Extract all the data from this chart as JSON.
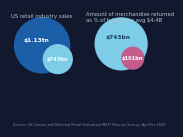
{
  "bg_color": "#12192e",
  "left_title": "US retail industry sales",
  "right_title": "Amount of merchandise returned\nas % of total sales avg $4.4B",
  "left_big_color": "#1a5fa8",
  "left_small_color": "#7ecde8",
  "right_big_color": "#7ecde8",
  "right_small_color": "#c45c8e",
  "left_big_label": "$1.13tn",
  "left_small_label": "$743bn",
  "right_big_label": "$743bn",
  "right_small_label": "$101bn",
  "left_big_r": 0.42,
  "left_small_r": 0.22,
  "right_big_r": 0.38,
  "right_small_r": 0.16,
  "source_text": "Source: US Census and National Retail Federation(NRF) Returns Survey, Apr/Oct 2020",
  "title_color": "#aec6cf",
  "label_color_white": "#ffffff",
  "label_color_dark": "#1a3a5c",
  "source_color": "#7a8899",
  "title_fontsize": 3.8,
  "label_fontsize": 4.2,
  "source_fontsize": 2.5
}
